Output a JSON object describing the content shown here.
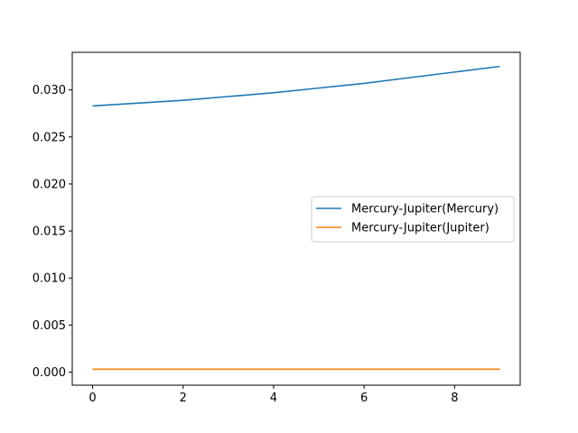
{
  "chart_data": {
    "type": "line",
    "title": "",
    "xlabel": "",
    "ylabel": "",
    "x": [
      0,
      1,
      2,
      3,
      4,
      5,
      6,
      7,
      8,
      9
    ],
    "xlim": [
      -0.45,
      9.45
    ],
    "ylim": [
      -0.0014,
      0.034
    ],
    "xticks": [
      "0",
      "2",
      "4",
      "6",
      "8"
    ],
    "yticks": [
      "0.000",
      "0.005",
      "0.010",
      "0.015",
      "0.020",
      "0.025",
      "0.030"
    ],
    "grid": false,
    "legend_position": "center-right",
    "series": [
      {
        "name": "Mercury-Jupiter(Mercury)",
        "color": "#1f77b4",
        "values": [
          0.0283,
          0.0286,
          0.0289,
          0.0293,
          0.0297,
          0.0302,
          0.0307,
          0.0313,
          0.0319,
          0.0325
        ]
      },
      {
        "name": "Mercury-Jupiter(Jupiter)",
        "color": "#ff7f0e",
        "values": [
          0.0003,
          0.0003,
          0.0003,
          0.0003,
          0.0003,
          0.0003,
          0.0003,
          0.0003,
          0.0003,
          0.0003
        ]
      }
    ]
  }
}
